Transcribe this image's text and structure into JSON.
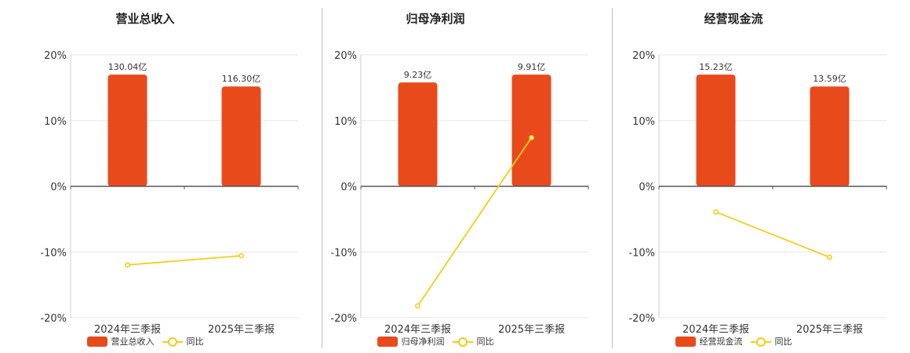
{
  "colors": {
    "bar": "#e84a1c",
    "line": "#f5cc16",
    "axis": "#555555",
    "grid": "#e6e6e6"
  },
  "chart_data": [
    {
      "type": "bar",
      "title": "营业总收入",
      "categories": [
        "2024年三季报",
        "2025年三季报"
      ],
      "bar_labels": [
        "130.04亿",
        "116.30亿"
      ],
      "bar_values_yi": [
        130.04,
        116.3
      ],
      "bar_axis_values": [
        17,
        15.2
      ],
      "series": [
        {
          "name": "营业总收入",
          "kind": "bar"
        },
        {
          "name": "同比",
          "kind": "line",
          "values": [
            -11.97,
            -10.57
          ]
        }
      ],
      "yticks": [
        "20%",
        "10%",
        "0%",
        "-10%",
        "-20%"
      ],
      "ylim": [
        -20,
        20
      ],
      "grid": true,
      "legend": "bottom"
    },
    {
      "type": "bar",
      "title": "归母净利润",
      "categories": [
        "2024年三季报",
        "2025年三季报"
      ],
      "bar_labels": [
        "9.23亿",
        "9.91亿"
      ],
      "bar_values_yi": [
        9.23,
        9.91
      ],
      "bar_axis_values": [
        15.8,
        17
      ],
      "series": [
        {
          "name": "归母净利润",
          "kind": "bar"
        },
        {
          "name": "同比",
          "kind": "line",
          "values": [
            -18.2,
            7.4
          ]
        }
      ],
      "yticks": [
        "20%",
        "10%",
        "0%",
        "-10%",
        "-20%"
      ],
      "ylim": [
        -20,
        20
      ],
      "grid": true,
      "legend": "bottom"
    },
    {
      "type": "bar",
      "title": "经营现金流",
      "categories": [
        "2024年三季报",
        "2025年三季报"
      ],
      "bar_labels": [
        "15.23亿",
        "13.59亿"
      ],
      "bar_values_yi": [
        15.23,
        13.59
      ],
      "bar_axis_values": [
        17,
        15.2
      ],
      "series": [
        {
          "name": "经营现金流",
          "kind": "bar"
        },
        {
          "name": "同比",
          "kind": "line",
          "values": [
            -3.9,
            -10.8
          ]
        }
      ],
      "yticks": [
        "20%",
        "10%",
        "0%",
        "-10%",
        "-20%"
      ],
      "ylim": [
        -20,
        20
      ],
      "grid": true,
      "legend": "bottom"
    }
  ]
}
